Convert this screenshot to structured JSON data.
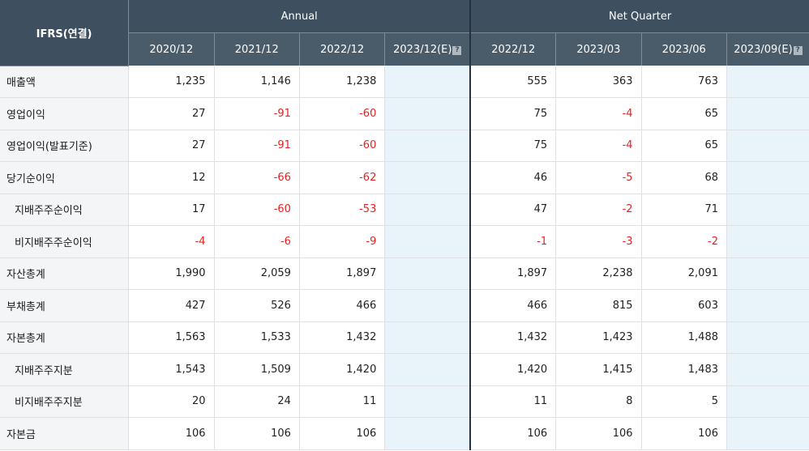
{
  "table": {
    "corner_label": "IFRS(연결)",
    "groups": {
      "annual": "Annual",
      "quarter": "Net Quarter"
    },
    "annual_periods": [
      "2020/12",
      "2021/12",
      "2022/12",
      "2023/12(E)"
    ],
    "quarter_periods": [
      "2022/12",
      "2023/03",
      "2023/06",
      "2023/09(E)"
    ],
    "rows": [
      {
        "label": "매출액",
        "values": [
          "1,235",
          "1,146",
          "1,238",
          "",
          "555",
          "363",
          "763",
          ""
        ]
      },
      {
        "label": "영업이익",
        "values": [
          "27",
          "-91",
          "-60",
          "",
          "75",
          "-4",
          "65",
          ""
        ]
      },
      {
        "label": "영업이익(발표기준)",
        "values": [
          "27",
          "-91",
          "-60",
          "",
          "75",
          "-4",
          "65",
          ""
        ]
      },
      {
        "label": "당기순이익",
        "values": [
          "12",
          "-66",
          "-62",
          "",
          "46",
          "-5",
          "68",
          ""
        ]
      },
      {
        "label": "지배주주순이익",
        "values": [
          "17",
          "-60",
          "-53",
          "",
          "47",
          "-2",
          "71",
          ""
        ]
      },
      {
        "label": "비지배주주순이익",
        "values": [
          "-4",
          "-6",
          "-9",
          "",
          "-1",
          "-3",
          "-2",
          ""
        ]
      },
      {
        "label": "자산총계",
        "values": [
          "1,990",
          "2,059",
          "1,897",
          "",
          "1,897",
          "2,238",
          "2,091",
          ""
        ]
      },
      {
        "label": "부채총계",
        "values": [
          "427",
          "526",
          "466",
          "",
          "466",
          "815",
          "603",
          ""
        ]
      },
      {
        "label": "자본총계",
        "values": [
          "1,563",
          "1,533",
          "1,432",
          "",
          "1,432",
          "1,423",
          "1,488",
          ""
        ]
      },
      {
        "label": "지배주주지분",
        "values": [
          "1,543",
          "1,509",
          "1,420",
          "",
          "1,420",
          "1,415",
          "1,483",
          ""
        ]
      },
      {
        "label": "비지배주주지분",
        "values": [
          "20",
          "24",
          "11",
          "",
          "11",
          "8",
          "5",
          ""
        ]
      },
      {
        "label": "자본금",
        "values": [
          "106",
          "106",
          "106",
          "",
          "106",
          "106",
          "106",
          ""
        ]
      }
    ]
  },
  "icons": {
    "estimate_help": "question-help-icon"
  },
  "colors": {
    "header_bg": "#3e5060",
    "negative": "#e52222",
    "estimate_cell": "#e8f4f9",
    "label_bg": "#f3f5f7"
  }
}
